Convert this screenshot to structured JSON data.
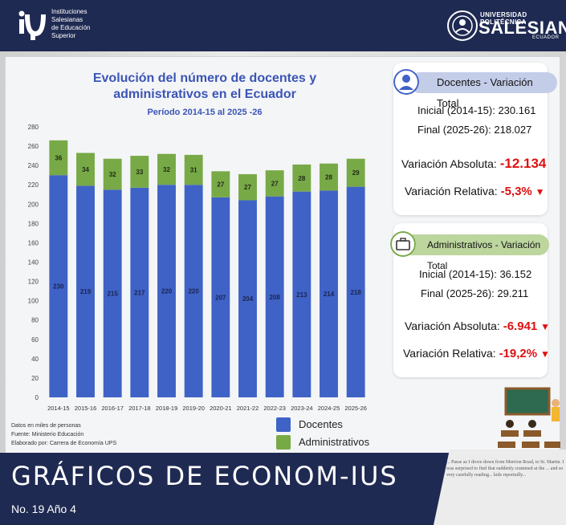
{
  "header": {
    "ise_lines": [
      "Instituciones",
      "Salesianas",
      "de Educación",
      "Superior"
    ],
    "ups_top": "UNIVERSIDAD POLITÉCNICA",
    "ups_main": "SALESIANA",
    "ups_sub": "ECUADOR"
  },
  "footer": {
    "title": "GRÁFICOS DE ECONOM-IUS",
    "issue": "No. 19 Año 4"
  },
  "notes": {
    "line1": "Datos en miles de personas",
    "line2": "Fuente: Ministerio Educación",
    "line3": "Elaborado por: Carrera de Economía UPS"
  },
  "colors": {
    "docentes": "#3f62c6",
    "administrativos": "#78a947",
    "header_bg": "#1f2a52",
    "negative": "#d11111"
  },
  "chart_data": {
    "type": "bar",
    "stacked": true,
    "title": "Evolución del número de docentes y administrativos en el Ecuador",
    "subtitle": "Período 2014-15 al 2025 -26",
    "categories": [
      "2014-15",
      "2015-16",
      "2016-17",
      "2017-18",
      "2018-19",
      "2019-20",
      "2020-21",
      "2021-22",
      "2022-23",
      "2023-24",
      "2024-25",
      "2025-26"
    ],
    "series": [
      {
        "name": "Docentes",
        "values": [
          230,
          219,
          215,
          217,
          220,
          220,
          207,
          204,
          208,
          213,
          214,
          218
        ]
      },
      {
        "name": "Administrativos",
        "values": [
          36,
          34,
          32,
          33,
          32,
          31,
          27,
          27,
          27,
          28,
          28,
          29
        ]
      }
    ],
    "ylim": [
      0,
      280
    ],
    "yticks": [
      0,
      20,
      40,
      60,
      80,
      100,
      120,
      140,
      160,
      180,
      200,
      220,
      240,
      260,
      280
    ],
    "grid": false,
    "legend": "bottom"
  },
  "docentes_card": {
    "title": "Docentes - Variación Total",
    "inicial": "Inicial (2014-15): 230.161",
    "final": "Final (2025-26): 218.027",
    "abs_label": "Variación Absoluta:",
    "abs_value": "-12.134",
    "rel_label": "Variación Relativa:",
    "rel_value": "-5,3%"
  },
  "admin_card": {
    "title": "Administrativos - Variación Total",
    "inicial": "Inicial (2014-15): 36.152",
    "final": "Final (2025-26): 29.211",
    "abs_label": "Variación Absoluta:",
    "abs_value": "-6.941",
    "rel_label": "Variación Relativa:",
    "rel_value": "-19,2%"
  },
  "paper_text": "... Passe as I drove down from Merrion Road, to St. Martin. I was surprised to find that suddenly crammed at the ... and so very carefully reading... kids reportedly..."
}
